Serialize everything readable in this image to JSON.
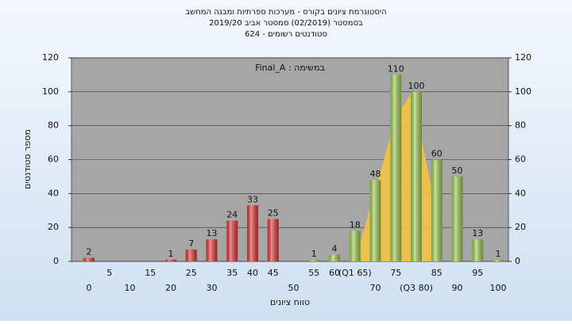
{
  "chart_data": {
    "type": "bar",
    "title": [
      "היסטוגרמת ציונים בקורס - מערכות ספרתיות ומבנה המחשב",
      "בסמסטר  (02/2019)  סמסטר אביב 2019/20",
      "סטודנטים רשומים - 624"
    ],
    "annotation": "Final_A : במשימה",
    "x_label": "טווח ציונים",
    "y_label": "מספר סטודנטים",
    "categories": [
      "0",
      "5",
      "10",
      "15",
      "20",
      "25",
      "30",
      "35",
      "40",
      "45",
      "50",
      "55",
      "60",
      "(Q1 65)",
      "70",
      "75",
      "(Q3 80)",
      "85",
      "90",
      "95",
      "100"
    ],
    "values": [
      2,
      0,
      0,
      0,
      1,
      7,
      13,
      24,
      33,
      25,
      0,
      1,
      4,
      18,
      48,
      110,
      100,
      60,
      50,
      13,
      1
    ],
    "colors": [
      "#e03535",
      "#e03535",
      "#e03535",
      "#e03535",
      "#e03535",
      "#e03535",
      "#e03535",
      "#e03535",
      "#e03535",
      "#e03535",
      "#e03535",
      "#9cc94f",
      "#9cc94f",
      "#9cc94f",
      "#9cc94f",
      "#9cc94f",
      "#9cc94f",
      "#9cc94f",
      "#9cc94f",
      "#9cc94f",
      "#9cc94f"
    ],
    "area": {
      "color": "#f5c242",
      "x": [
        65,
        75,
        79,
        84
      ],
      "values": [
        0,
        85,
        100,
        40
      ]
    },
    "ylim": [
      0,
      120
    ],
    "yticks": [
      0,
      20,
      40,
      60,
      80,
      100,
      120
    ],
    "grid": true
  }
}
